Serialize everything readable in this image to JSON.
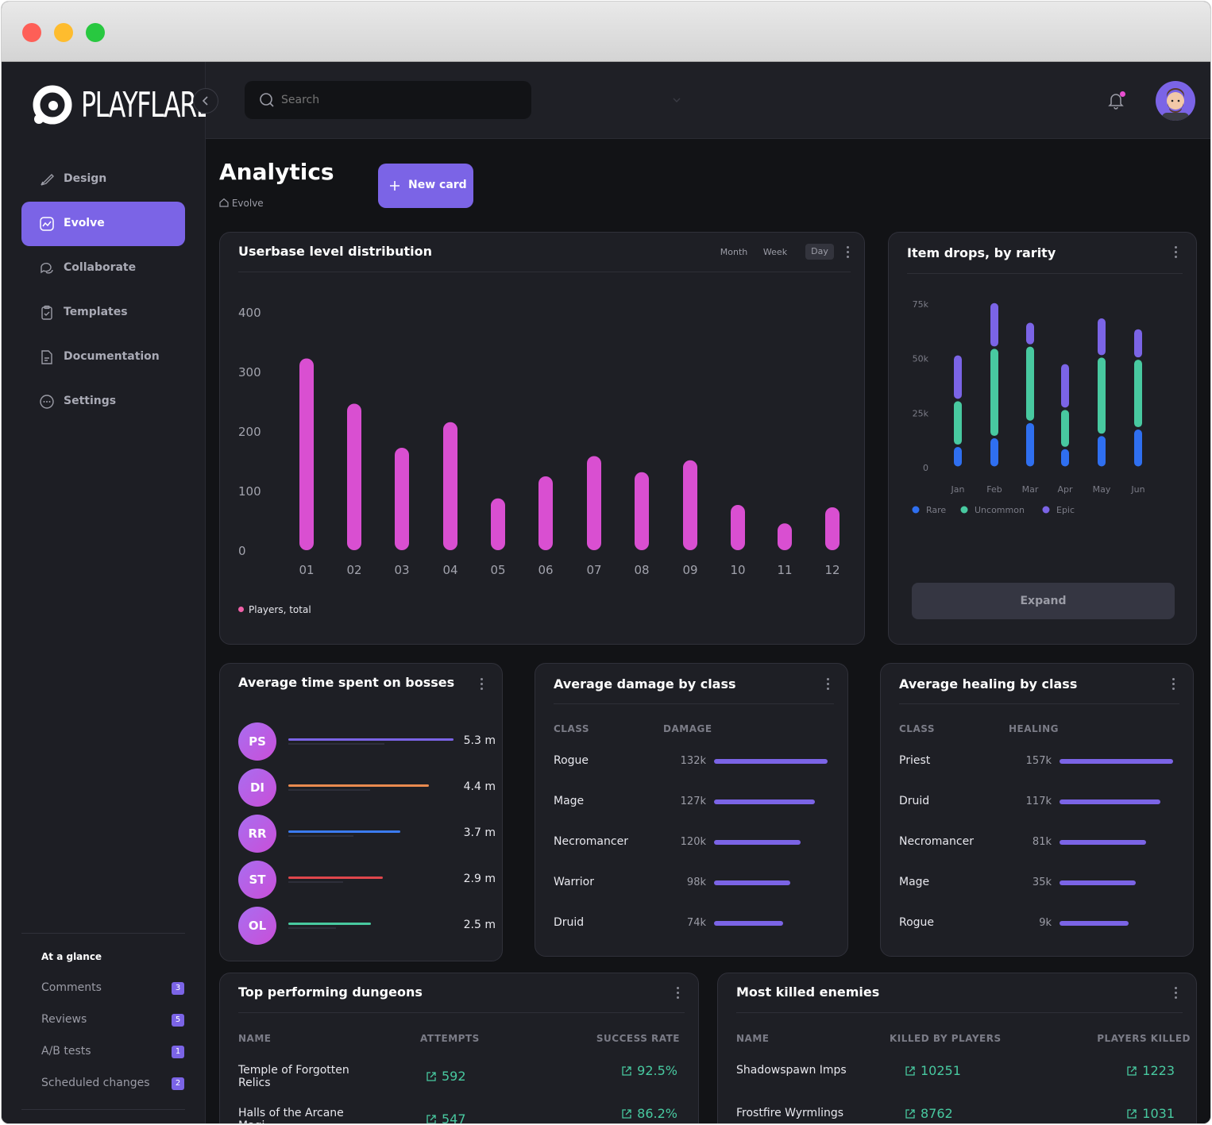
{
  "app": {
    "name": "PLAYFLARE"
  },
  "search": {
    "placeholder": "Search"
  },
  "nav": [
    {
      "label": "Design",
      "icon": "paintbrush-icon"
    },
    {
      "label": "Evolve",
      "icon": "chart-icon",
      "active": true
    },
    {
      "label": "Collaborate",
      "icon": "chat-icon"
    },
    {
      "label": "Templates",
      "icon": "clipboard-icon"
    },
    {
      "label": "Documentation",
      "icon": "document-icon"
    },
    {
      "label": "Settings",
      "icon": "more-circle-icon"
    }
  ],
  "glance": {
    "title": "At a glance",
    "items": [
      {
        "label": "Comments",
        "count": "3"
      },
      {
        "label": "Reviews",
        "count": "5"
      },
      {
        "label": "A/B tests",
        "count": "1"
      },
      {
        "label": "Scheduled changes",
        "count": "2"
      }
    ]
  },
  "page": {
    "title": "Analytics",
    "breadcrumb": "Evolve",
    "new_card": "New card"
  },
  "level_card": {
    "title": "Userbase level distribution",
    "ranges": [
      "Month",
      "Week",
      "Day"
    ],
    "active_range": "Day",
    "legend": "Players, total"
  },
  "drops_card": {
    "title": "Item drops, by rarity",
    "expand": "Expand"
  },
  "bosses_card": {
    "title": "Average time spent on bosses",
    "rows": [
      {
        "initials": "PS",
        "value": "5.3 m",
        "ratio": 1.0,
        "color": "#7b64e6"
      },
      {
        "initials": "DI",
        "value": "4.4 m",
        "ratio": 0.85,
        "color": "#e98a4f"
      },
      {
        "initials": "RR",
        "value": "3.7 m",
        "ratio": 0.68,
        "color": "#3b7bf0"
      },
      {
        "initials": "ST",
        "value": "2.9 m",
        "ratio": 0.57,
        "color": "#e0464c"
      },
      {
        "initials": "OL",
        "value": "2.5 m",
        "ratio": 0.5,
        "color": "#48c9a0"
      }
    ]
  },
  "damage_card": {
    "title": "Average damage by class",
    "col1": "CLASS",
    "col2": "DAMAGE",
    "rows": [
      {
        "name": "Rogue",
        "value": "132k",
        "ratio": 1.0
      },
      {
        "name": "Mage",
        "value": "127k",
        "ratio": 0.89
      },
      {
        "name": "Necromancer",
        "value": "120k",
        "ratio": 0.76
      },
      {
        "name": "Warrior",
        "value": "98k",
        "ratio": 0.67
      },
      {
        "name": "Druid",
        "value": "74k",
        "ratio": 0.61
      }
    ]
  },
  "healing_card": {
    "title": "Average healing by class",
    "col1": "CLASS",
    "col2": "HEALING",
    "rows": [
      {
        "name": "Priest",
        "value": "157k",
        "ratio": 1.0
      },
      {
        "name": "Druid",
        "value": "117k",
        "ratio": 0.89
      },
      {
        "name": "Necromancer",
        "value": "81k",
        "ratio": 0.76
      },
      {
        "name": "Mage",
        "value": "35k",
        "ratio": 0.67
      },
      {
        "name": "Rogue",
        "value": "9k",
        "ratio": 0.61
      }
    ]
  },
  "dungeons_card": {
    "title": "Top performing dungeons",
    "cols": [
      "NAME",
      "ATTEMPTS",
      "SUCCESS RATE"
    ],
    "rows": [
      {
        "name": "Temple of Forgotten Relics",
        "attempts": "592",
        "rate": "92.5%"
      },
      {
        "name": "Halls of the Arcane Magi",
        "attempts": "547",
        "rate": "86.2%"
      }
    ]
  },
  "enemies_card": {
    "title": "Most killed enemies",
    "cols": [
      "NAME",
      "KILLED BY PLAYERS",
      "PLAYERS KILLED"
    ],
    "rows": [
      {
        "name": "Shadowspawn Imps",
        "killed": "10251",
        "players": "1223"
      },
      {
        "name": "Frostfire Wyrmlings",
        "killed": "8762",
        "players": "1031"
      }
    ]
  },
  "chart_data": [
    {
      "type": "bar",
      "title": "Userbase level distribution",
      "categories": [
        "01",
        "02",
        "03",
        "04",
        "05",
        "06",
        "07",
        "08",
        "09",
        "10",
        "11",
        "12"
      ],
      "series": [
        {
          "name": "Players, total",
          "values": [
            322,
            246,
            172,
            215,
            87,
            124,
            158,
            131,
            151,
            76,
            45,
            72
          ]
        }
      ],
      "yticks": [
        "0",
        "100",
        "200",
        "300",
        "400"
      ],
      "ylim": [
        0,
        400
      ],
      "legend": "bottom-left",
      "color": "#d94fd1"
    },
    {
      "type": "bar",
      "stacked": true,
      "title": "Item drops, by rarity",
      "categories": [
        "Jan",
        "Feb",
        "Mar",
        "Apr",
        "May",
        "Jun"
      ],
      "series": [
        {
          "name": "Rare",
          "values": [
            10000,
            14000,
            21000,
            9000,
            15000,
            18000
          ],
          "color": "#2f6ff0"
        },
        {
          "name": "Uncommon",
          "values": [
            21000,
            41000,
            35000,
            18000,
            36000,
            32000
          ],
          "color": "#48c9a0"
        },
        {
          "name": "Epic",
          "values": [
            21000,
            21000,
            11000,
            21000,
            18000,
            14000
          ],
          "color": "#7b64e6"
        }
      ],
      "yticks": [
        "0",
        "25k",
        "50k",
        "75k"
      ],
      "ylim": [
        0,
        75000
      ],
      "legend": "bottom-left"
    }
  ]
}
